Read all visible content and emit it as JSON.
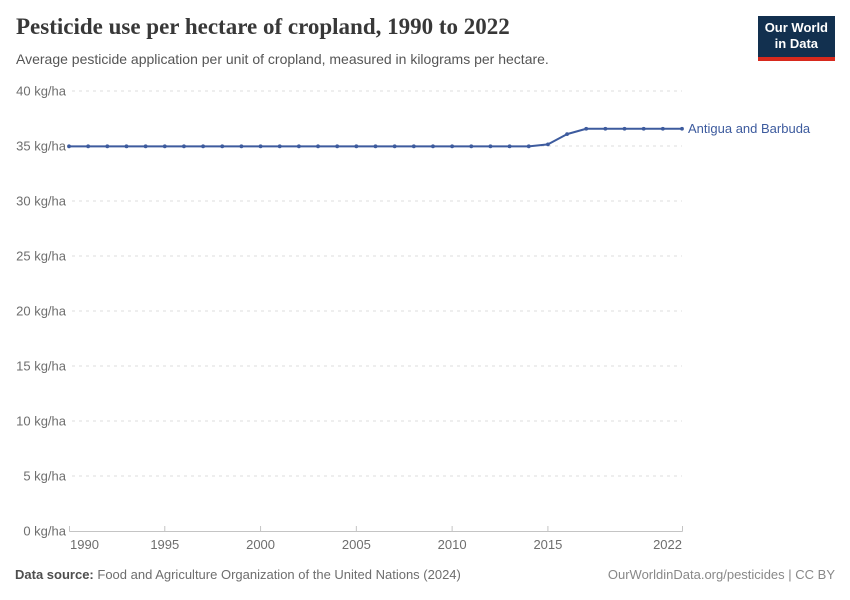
{
  "header": {
    "title": "Pesticide use per hectare of cropland, 1990 to 2022",
    "subtitle": "Average pesticide application per unit of cropland, measured in kilograms per hectare.",
    "logo": {
      "line1": "Our World",
      "line2": "in Data",
      "bg_color": "#12304f",
      "accent_color": "#d7291d"
    }
  },
  "chart_data": {
    "type": "line",
    "title": "Pesticide use per hectare of cropland, 1990 to 2022",
    "unit": "kg/ha",
    "x": [
      1990,
      1991,
      1992,
      1993,
      1994,
      1995,
      1996,
      1997,
      1998,
      1999,
      2000,
      2001,
      2002,
      2003,
      2004,
      2005,
      2006,
      2007,
      2008,
      2009,
      2010,
      2011,
      2012,
      2013,
      2014,
      2015,
      2016,
      2017,
      2018,
      2019,
      2020,
      2021,
      2022
    ],
    "series": [
      {
        "name": "Antigua and Barbuda",
        "color": "#3d5b9e",
        "values": [
          34.97,
          34.97,
          34.97,
          34.97,
          34.97,
          34.97,
          34.97,
          34.97,
          34.97,
          34.97,
          34.97,
          34.97,
          34.97,
          34.97,
          34.97,
          34.97,
          34.97,
          34.97,
          34.97,
          34.97,
          34.97,
          34.97,
          34.97,
          34.97,
          34.97,
          35.15,
          36.08,
          36.57,
          36.57,
          36.57,
          36.57,
          36.57,
          36.57
        ]
      }
    ],
    "ylim": [
      0,
      40
    ],
    "yticks": [
      0,
      5,
      10,
      15,
      20,
      25,
      30,
      35,
      40
    ],
    "ytick_suffix": " kg/ha",
    "xticks": [
      1990,
      1995,
      2000,
      2005,
      2010,
      2015,
      2022
    ],
    "grid": "dashed-horizontal",
    "legend_position": "end-of-line",
    "colors": {
      "grid": "#dcdcdc",
      "axis": "#c4c4c4",
      "tick_label": "#6e6e6e"
    }
  },
  "footer": {
    "source_label": "Data source:",
    "source_text": "Food and Agriculture Organization of the United Nations (2024)",
    "credit": "OurWorldinData.org/pesticides | CC BY"
  }
}
